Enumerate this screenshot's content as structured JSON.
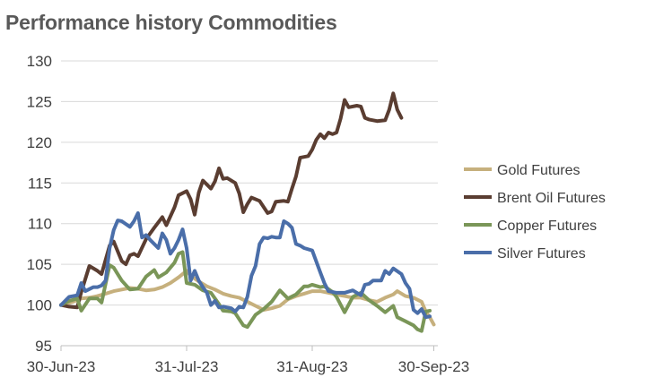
{
  "chart_data": {
    "type": "line",
    "title": "Performance history Commodities",
    "xlabel": "",
    "ylabel": "",
    "ylim": [
      95,
      130
    ],
    "yticks": [
      95,
      100,
      105,
      110,
      115,
      120,
      125,
      130
    ],
    "xticks": [
      {
        "label": "30-Jun-23",
        "x": 0
      },
      {
        "label": "31-Jul-23",
        "x": 31
      },
      {
        "label": "31-Aug-23",
        "x": 62
      },
      {
        "label": "30-Sep-23",
        "x": 92
      }
    ],
    "xlim": [
      0,
      93
    ],
    "grid": "horizontal",
    "legend_position": "right",
    "series": [
      {
        "name": "Gold Futures",
        "color": "#c6b07d",
        "points": [
          [
            0,
            100
          ],
          [
            3,
            100.4
          ],
          [
            5,
            100.8
          ],
          [
            7,
            100.9
          ],
          [
            9,
            101.1
          ],
          [
            11,
            101.4
          ],
          [
            13,
            101.7
          ],
          [
            15,
            101.9
          ],
          [
            17,
            102.1
          ],
          [
            19,
            102.0
          ],
          [
            21,
            101.8
          ],
          [
            23,
            101.9
          ],
          [
            25,
            102.2
          ],
          [
            27,
            102.7
          ],
          [
            29,
            103.4
          ],
          [
            31,
            104.2
          ],
          [
            32,
            103.6
          ],
          [
            34,
            102.9
          ],
          [
            36,
            102.3
          ],
          [
            38,
            101.9
          ],
          [
            40,
            101.4
          ],
          [
            42,
            101.1
          ],
          [
            44,
            100.9
          ],
          [
            46,
            100.4
          ],
          [
            48,
            99.9
          ],
          [
            50,
            99.4
          ],
          [
            52,
            99.6
          ],
          [
            54,
            99.9
          ],
          [
            56,
            100.7
          ],
          [
            58,
            101.1
          ],
          [
            60,
            101.4
          ],
          [
            62,
            101.7
          ],
          [
            64,
            101.7
          ],
          [
            66,
            101.5
          ],
          [
            68,
            101.3
          ],
          [
            70,
            101.1
          ],
          [
            72,
            100.9
          ],
          [
            74,
            100.9
          ],
          [
            76,
            100.6
          ],
          [
            78,
            100.4
          ],
          [
            80,
            100.9
          ],
          [
            82,
            101.3
          ],
          [
            83,
            101.7
          ],
          [
            85,
            101.1
          ],
          [
            87,
            100.9
          ],
          [
            89,
            100.4
          ],
          [
            90,
            99.2
          ],
          [
            91,
            98.5
          ],
          [
            92,
            97.6
          ]
        ]
      },
      {
        "name": "Brent Oil Futures",
        "color": "#5a3d31",
        "points": [
          [
            0,
            100
          ],
          [
            2,
            99.8
          ],
          [
            4,
            99.7
          ],
          [
            5,
            101.6
          ],
          [
            7,
            104.8
          ],
          [
            9,
            104.2
          ],
          [
            10,
            103.8
          ],
          [
            12,
            107.3
          ],
          [
            13,
            107.8
          ],
          [
            14,
            106.6
          ],
          [
            15,
            105.4
          ],
          [
            16,
            105.0
          ],
          [
            17,
            106.1
          ],
          [
            18,
            106.3
          ],
          [
            19,
            106.0
          ],
          [
            21,
            108.1
          ],
          [
            23,
            109.5
          ],
          [
            25,
            110.8
          ],
          [
            26,
            109.8
          ],
          [
            28,
            112.0
          ],
          [
            29,
            113.5
          ],
          [
            31,
            114.0
          ],
          [
            32,
            113.0
          ],
          [
            33,
            111.1
          ],
          [
            34,
            113.8
          ],
          [
            35,
            115.3
          ],
          [
            37,
            114.3
          ],
          [
            38,
            115.2
          ],
          [
            39,
            116.8
          ],
          [
            40,
            115.5
          ],
          [
            41,
            115.6
          ],
          [
            43,
            115.0
          ],
          [
            44,
            113.7
          ],
          [
            45,
            111.4
          ],
          [
            46,
            112.4
          ],
          [
            47,
            113.2
          ],
          [
            49,
            112.8
          ],
          [
            51,
            111.3
          ],
          [
            52,
            111.5
          ],
          [
            53,
            112.7
          ],
          [
            55,
            112.8
          ],
          [
            56,
            112.7
          ],
          [
            57,
            114.3
          ],
          [
            58,
            115.8
          ],
          [
            59,
            118.1
          ],
          [
            61,
            118.3
          ],
          [
            62,
            119.1
          ],
          [
            63,
            120.3
          ],
          [
            64,
            121.0
          ],
          [
            65,
            120.5
          ],
          [
            66,
            121.2
          ],
          [
            67,
            121.0
          ],
          [
            68,
            121.2
          ],
          [
            69,
            122.9
          ],
          [
            70,
            125.2
          ],
          [
            71,
            124.3
          ],
          [
            73,
            124.5
          ],
          [
            74,
            124.4
          ],
          [
            75,
            123.0
          ],
          [
            76,
            122.8
          ],
          [
            78,
            122.6
          ],
          [
            80,
            122.7
          ],
          [
            81,
            124.0
          ],
          [
            82,
            126.0
          ],
          [
            83,
            124.0
          ],
          [
            84,
            123.0
          ]
        ]
      },
      {
        "name": "Copper Futures",
        "color": "#7a9658",
        "points": [
          [
            0,
            100
          ],
          [
            2,
            100.5
          ],
          [
            4,
            100.8
          ],
          [
            5,
            99.3
          ],
          [
            7,
            100.8
          ],
          [
            9,
            100.8
          ],
          [
            10,
            100.3
          ],
          [
            12,
            104.9
          ],
          [
            13,
            104.6
          ],
          [
            15,
            103.0
          ],
          [
            17,
            101.9
          ],
          [
            19,
            102.0
          ],
          [
            21,
            103.5
          ],
          [
            23,
            104.3
          ],
          [
            24,
            103.4
          ],
          [
            26,
            104.0
          ],
          [
            28,
            105.2
          ],
          [
            29,
            106.3
          ],
          [
            30,
            106.5
          ],
          [
            31,
            102.7
          ],
          [
            33,
            102.5
          ],
          [
            35,
            101.8
          ],
          [
            37,
            101.5
          ],
          [
            39,
            100.1
          ],
          [
            40,
            99.3
          ],
          [
            42,
            99.2
          ],
          [
            43,
            99.0
          ],
          [
            45,
            97.5
          ],
          [
            46,
            97.3
          ],
          [
            48,
            98.8
          ],
          [
            50,
            99.5
          ],
          [
            52,
            100.4
          ],
          [
            54,
            101.8
          ],
          [
            56,
            100.8
          ],
          [
            58,
            101.3
          ],
          [
            60,
            102.3
          ],
          [
            61,
            102.3
          ],
          [
            62,
            102.5
          ],
          [
            64,
            102.2
          ],
          [
            65,
            102.3
          ],
          [
            67,
            101.6
          ],
          [
            68,
            101.0
          ],
          [
            70,
            99.1
          ],
          [
            72,
            101.0
          ],
          [
            74,
            101.5
          ],
          [
            76,
            100.6
          ],
          [
            78,
            99.9
          ],
          [
            80,
            99.1
          ],
          [
            82,
            99.9
          ],
          [
            83,
            98.5
          ],
          [
            85,
            98.0
          ],
          [
            87,
            97.5
          ],
          [
            88,
            97.0
          ],
          [
            89,
            96.8
          ],
          [
            90,
            99.2
          ],
          [
            91,
            99.3
          ]
        ]
      },
      {
        "name": "Silver Futures",
        "color": "#4a6ea9",
        "points": [
          [
            0,
            100
          ],
          [
            2,
            101
          ],
          [
            4,
            101.2
          ],
          [
            5,
            102.7
          ],
          [
            6,
            101.7
          ],
          [
            8,
            102.2
          ],
          [
            9,
            102.2
          ],
          [
            10,
            102.4
          ],
          [
            11,
            103.0
          ],
          [
            12,
            107.0
          ],
          [
            13,
            109.2
          ],
          [
            14,
            110.4
          ],
          [
            15,
            110.3
          ],
          [
            17,
            109.6
          ],
          [
            18,
            110.3
          ],
          [
            19,
            111.3
          ],
          [
            20,
            108.3
          ],
          [
            21,
            108.6
          ],
          [
            22,
            108.0
          ],
          [
            23,
            107.5
          ],
          [
            24,
            107.0
          ],
          [
            25,
            108.8
          ],
          [
            26,
            108.0
          ],
          [
            27,
            106.3
          ],
          [
            28,
            107.0
          ],
          [
            29,
            108.0
          ],
          [
            30,
            109.3
          ],
          [
            31,
            107.0
          ],
          [
            32,
            103.0
          ],
          [
            33,
            104.2
          ],
          [
            34,
            103.0
          ],
          [
            35,
            102.2
          ],
          [
            36,
            101.5
          ],
          [
            37,
            100.0
          ],
          [
            38,
            100.5
          ],
          [
            39,
            99.7
          ],
          [
            40,
            99.8
          ],
          [
            41,
            99.7
          ],
          [
            42,
            99.6
          ],
          [
            43,
            99.2
          ],
          [
            44,
            99.8
          ],
          [
            45,
            99.7
          ],
          [
            46,
            101.0
          ],
          [
            47,
            103.6
          ],
          [
            48,
            104.8
          ],
          [
            49,
            107.5
          ],
          [
            50,
            108.3
          ],
          [
            51,
            108.2
          ],
          [
            52,
            108.4
          ],
          [
            53,
            108.3
          ],
          [
            54,
            108.3
          ],
          [
            55,
            110.3
          ],
          [
            56,
            110.0
          ],
          [
            57,
            109.5
          ],
          [
            58,
            107.5
          ],
          [
            59,
            107.3
          ],
          [
            60,
            107.0
          ],
          [
            62,
            106.7
          ],
          [
            64,
            104.0
          ],
          [
            65,
            102.7
          ],
          [
            66,
            101.7
          ],
          [
            68,
            101.5
          ],
          [
            70,
            101.5
          ],
          [
            72,
            101.8
          ],
          [
            74,
            101.2
          ],
          [
            75,
            102.5
          ],
          [
            76,
            102.6
          ],
          [
            77,
            103.0
          ],
          [
            78,
            103.0
          ],
          [
            79,
            103.0
          ],
          [
            80,
            104.2
          ],
          [
            81,
            103.8
          ],
          [
            82,
            104.5
          ],
          [
            84,
            103.8
          ],
          [
            85,
            102.7
          ],
          [
            86,
            102.0
          ],
          [
            87,
            99.4
          ],
          [
            88,
            99.0
          ],
          [
            89,
            99.5
          ],
          [
            90,
            98.5
          ],
          [
            91,
            98.6
          ]
        ]
      }
    ]
  }
}
